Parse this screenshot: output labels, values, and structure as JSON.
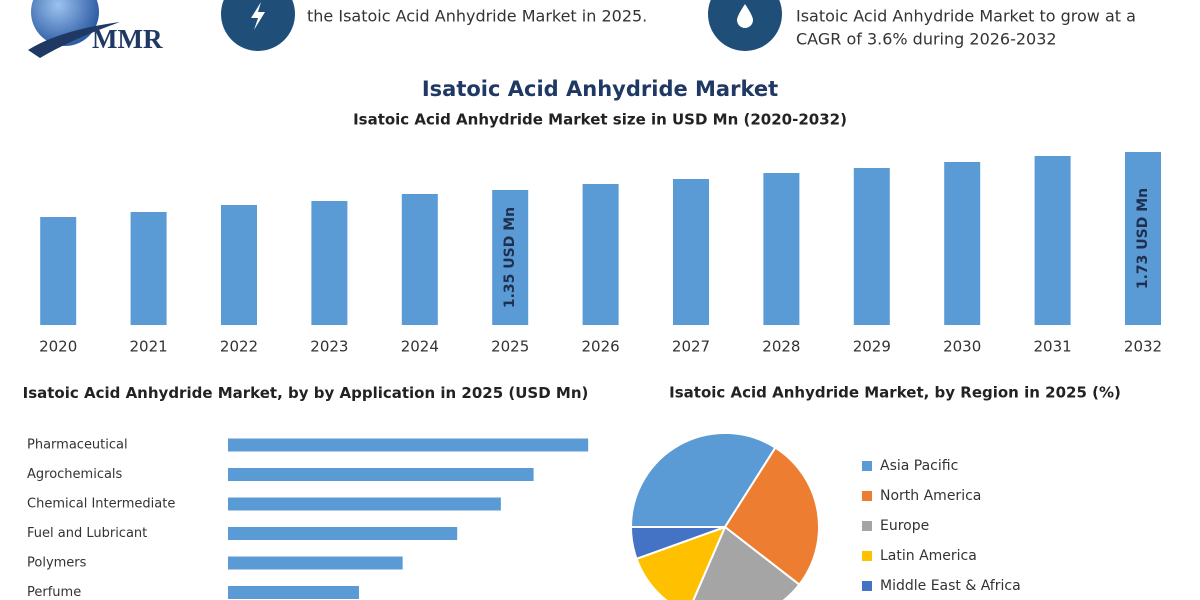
{
  "header": {
    "logo": "MMR",
    "notes": [
      [
        "the Isatoic Acid Anhydride Market in 2025."
      ],
      [
        "Isatoic Acid Anhydride Market to grow at a",
        "CAGR of 3.6% during 2026-2032"
      ]
    ]
  },
  "chart_data": [
    {
      "type": "bar",
      "title": "Isatoic Acid Anhydride Market",
      "subtitle": "Isatoic Acid Anhydride Market size in USD Mn (2020-2032)",
      "categories": [
        "2020",
        "2021",
        "2022",
        "2023",
        "2024",
        "2025",
        "2026",
        "2027",
        "2028",
        "2029",
        "2030",
        "2031",
        "2032"
      ],
      "values": [
        1.08,
        1.13,
        1.2,
        1.24,
        1.31,
        1.35,
        1.41,
        1.46,
        1.52,
        1.57,
        1.63,
        1.69,
        1.73
      ],
      "value_labels": [
        null,
        null,
        null,
        null,
        null,
        "1.35 USD Mn",
        null,
        null,
        null,
        null,
        null,
        null,
        "1.73 USD Mn"
      ],
      "color": "#5b9bd5",
      "ylim": [
        0,
        1.75
      ]
    },
    {
      "type": "hbar",
      "title": "Isatoic Acid Anhydride Market, by by Application in 2025 (USD Mn)",
      "categories": [
        "Pharmaceutical",
        "Agrochemicals",
        "Chemical Intermediate",
        "Fuel and Lubricant",
        "Polymers",
        "Perfume"
      ],
      "values": [
        0.33,
        0.28,
        0.25,
        0.21,
        0.16,
        0.12
      ],
      "color": "#5b9bd5",
      "xlim": [
        0,
        0.35
      ]
    },
    {
      "type": "pie",
      "title": "Isatoic Acid Anhydride Market, by Region in 2025 (%)",
      "categories": [
        "Asia Pacific",
        "North America",
        "Europe",
        "Latin America",
        "Middle East & Africa"
      ],
      "values": [
        34,
        26.5,
        21,
        13,
        5.5
      ],
      "colors": [
        "#5b9bd5",
        "#ed7d31",
        "#a5a5a5",
        "#ffc000",
        "#4472c4"
      ],
      "legend": "right"
    }
  ]
}
